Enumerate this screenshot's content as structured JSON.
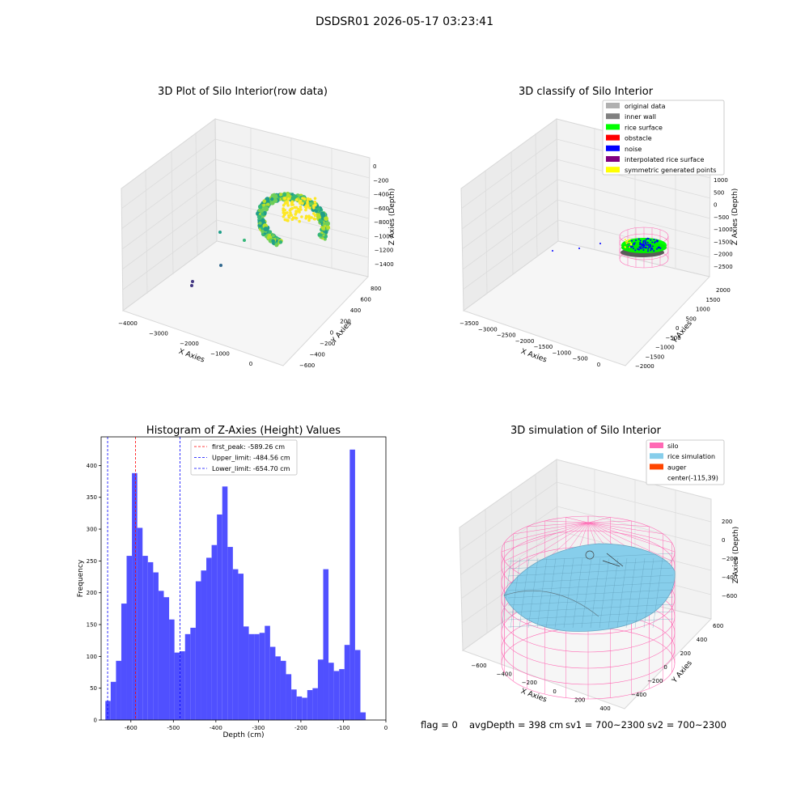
{
  "figure_title": "DSDSR01 2026-05-17 03:23:41",
  "footer": {
    "flag": "flag = 0",
    "avg_depth": "avgDepth = 398 cm",
    "sv1": "sv1 = 700~2300",
    "sv2": "sv2 = 700~2300"
  },
  "chart_data": [
    {
      "type": "scatter",
      "title": "3D Plot of Silo Interior(row data)",
      "xlabel": "X Axies",
      "ylabel": "Y Axies",
      "zlabel": "Z Axies (Depth)",
      "x_ticks": [
        "−4000",
        "−3000",
        "−2000",
        "−1000",
        "0"
      ],
      "y_ticks": [
        "−600",
        "−400",
        "−200",
        "0",
        "200",
        "400",
        "600",
        "800"
      ],
      "z_ticks": [
        "0",
        "−200",
        "−400",
        "−600",
        "−800",
        "−1000",
        "−1200",
        "−1400"
      ],
      "colors": [
        "#1f9e89",
        "#35b779",
        "#6ece58",
        "#b5de2b",
        "#fde725",
        "#31688e",
        "#443983"
      ]
    },
    {
      "type": "scatter",
      "title": "3D classify of Silo Interior",
      "xlabel": "X Axies",
      "ylabel": "Y Axies",
      "zlabel": "Z Axies (Depth)",
      "x_ticks": [
        "−3500",
        "−3000",
        "−2500",
        "−2000",
        "−1500",
        "−1000",
        "−500",
        "0"
      ],
      "y_ticks": [
        "−2000",
        "−1500",
        "−1000",
        "−500",
        "0",
        "500",
        "1000",
        "1500",
        "2000"
      ],
      "z_ticks": [
        "1000",
        "500",
        "0",
        "−500",
        "−1000",
        "−1500",
        "−2000",
        "−2500"
      ],
      "legend_position": "top-right",
      "legend": [
        {
          "label": "original data",
          "color": "#b0b0b0"
        },
        {
          "label": "inner wall",
          "color": "#808080"
        },
        {
          "label": "rice surface",
          "color": "#00ff00"
        },
        {
          "label": "obstacle",
          "color": "#ff0000"
        },
        {
          "label": "noise",
          "color": "#0000ff"
        },
        {
          "label": "interpolated rice surface",
          "color": "#800080"
        },
        {
          "label": "symmetric generated points",
          "color": "#ffff00"
        }
      ]
    },
    {
      "type": "bar",
      "title": "Histogram of Z-Axies (Height) Values",
      "xlabel": "Depth (cm)",
      "ylabel": "Frequency",
      "xlim": [
        -670,
        0
      ],
      "ylim": [
        0,
        445
      ],
      "x_ticks": [
        -600,
        -500,
        -400,
        -300,
        -200,
        -100,
        0
      ],
      "y_ticks": [
        0,
        50,
        100,
        150,
        200,
        250,
        300,
        350,
        400
      ],
      "bin_start": -660,
      "bin_width": 12.5,
      "bar_color": "#5050ff",
      "values": [
        30,
        60,
        93,
        183,
        258,
        388,
        302,
        258,
        248,
        232,
        203,
        193,
        158,
        106,
        108,
        135,
        145,
        218,
        235,
        255,
        275,
        323,
        367,
        272,
        237,
        230,
        147,
        135,
        135,
        137,
        148,
        115,
        100,
        93,
        72,
        48,
        37,
        35,
        47,
        50,
        95,
        237,
        90,
        77,
        80,
        118,
        425,
        110,
        12
      ],
      "vlines": [
        {
          "x": -589.26,
          "color": "#ff0000",
          "label": "first_peak: -589.26 cm"
        },
        {
          "x": -484.56,
          "color": "#0000ff",
          "label": "Upper_limit: -484.56 cm"
        },
        {
          "x": -654.7,
          "color": "#0000ff",
          "label": "Lower_limit: -654.70 cm"
        }
      ],
      "legend_position": "top-center"
    },
    {
      "type": "scatter",
      "title": "3D simulation of Silo Interior",
      "xlabel": "X Axies",
      "ylabel": "Y Axies",
      "zlabel": "Z Axies (Depth)",
      "x_ticks": [
        "−600",
        "−400",
        "−200",
        "0",
        "200",
        "400"
      ],
      "y_ticks": [
        "−400",
        "−200",
        "0",
        "200",
        "400",
        "600"
      ],
      "z_ticks": [
        "200",
        "0",
        "−200",
        "−400",
        "−600"
      ],
      "legend_position": "top-right",
      "legend": [
        {
          "label": "silo",
          "color": "#ff69b4"
        },
        {
          "label": "rice simulation",
          "color": "#87ceeb"
        },
        {
          "label": "auger",
          "color": "#ff4500"
        },
        {
          "label": "center(-115,39)",
          "color": ""
        }
      ]
    }
  ]
}
